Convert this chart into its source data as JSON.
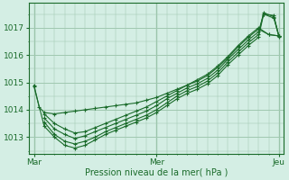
{
  "bg_color": "#d4eee4",
  "grid_color": "#a0c8b0",
  "line_color": "#1a6b2a",
  "marker_color": "#1a6b2a",
  "xlabel": "Pression niveau de la mer( hPa )",
  "xtick_labels": [
    "Mar",
    "Mer",
    "Jeu"
  ],
  "xtick_positions": [
    0,
    48,
    96
  ],
  "ytick_values": [
    1013,
    1014,
    1015,
    1016,
    1017
  ],
  "ylim": [
    1012.4,
    1017.9
  ],
  "xlim": [
    -2,
    98
  ],
  "series": [
    [
      0,
      1014.9,
      2,
      1014.1,
      4,
      1013.9,
      8,
      1013.85,
      12,
      1013.9,
      16,
      1013.95,
      20,
      1014.0,
      24,
      1014.05,
      28,
      1014.1,
      32,
      1014.15,
      36,
      1014.2,
      40,
      1014.25,
      44,
      1014.35,
      48,
      1014.45,
      52,
      1014.6,
      56,
      1014.75,
      60,
      1014.9,
      64,
      1015.05,
      68,
      1015.25,
      72,
      1015.55,
      76,
      1015.9,
      80,
      1016.3,
      84,
      1016.65,
      88,
      1016.95,
      92,
      1016.75,
      96,
      1016.7
    ],
    [
      4,
      1013.85,
      8,
      1013.5,
      12,
      1013.3,
      16,
      1013.15,
      20,
      1013.2,
      24,
      1013.35,
      28,
      1013.5,
      32,
      1013.65,
      36,
      1013.8,
      40,
      1013.95,
      44,
      1014.1,
      48,
      1014.3,
      52,
      1014.5,
      56,
      1014.7,
      60,
      1014.9,
      64,
      1015.1,
      68,
      1015.3,
      72,
      1015.6,
      76,
      1015.95,
      80,
      1016.35,
      84,
      1016.7,
      88,
      1017.0,
      92,
      1016.75,
      96,
      1016.7
    ],
    [
      4,
      1013.7,
      8,
      1013.3,
      12,
      1013.1,
      16,
      1012.95,
      20,
      1013.05,
      24,
      1013.2,
      28,
      1013.35,
      32,
      1013.5,
      36,
      1013.65,
      40,
      1013.8,
      44,
      1013.95,
      48,
      1014.15,
      52,
      1014.4,
      56,
      1014.6,
      60,
      1014.8,
      64,
      1014.95,
      68,
      1015.15,
      72,
      1015.45,
      76,
      1015.85,
      80,
      1016.2,
      84,
      1016.55,
      88,
      1016.85,
      90,
      1017.5,
      94,
      1017.35,
      96,
      1016.7
    ],
    [
      4,
      1013.55,
      8,
      1013.1,
      12,
      1012.85,
      16,
      1012.75,
      20,
      1012.85,
      24,
      1013.0,
      28,
      1013.2,
      32,
      1013.35,
      36,
      1013.5,
      40,
      1013.65,
      44,
      1013.8,
      48,
      1014.0,
      52,
      1014.25,
      56,
      1014.5,
      60,
      1014.7,
      64,
      1014.85,
      68,
      1015.05,
      72,
      1015.35,
      76,
      1015.75,
      80,
      1016.1,
      84,
      1016.45,
      88,
      1016.75,
      90,
      1017.55,
      94,
      1017.4,
      96,
      1016.7
    ],
    [
      0,
      1014.85,
      4,
      1013.4,
      8,
      1013.0,
      12,
      1012.7,
      16,
      1012.6,
      20,
      1012.7,
      24,
      1012.9,
      28,
      1013.1,
      32,
      1013.25,
      36,
      1013.4,
      40,
      1013.55,
      44,
      1013.7,
      48,
      1013.9,
      52,
      1014.15,
      56,
      1014.4,
      60,
      1014.6,
      64,
      1014.75,
      68,
      1014.95,
      72,
      1015.25,
      76,
      1015.65,
      80,
      1016.0,
      84,
      1016.35,
      88,
      1016.65,
      90,
      1017.5,
      94,
      1017.45,
      96,
      1016.65
    ]
  ]
}
